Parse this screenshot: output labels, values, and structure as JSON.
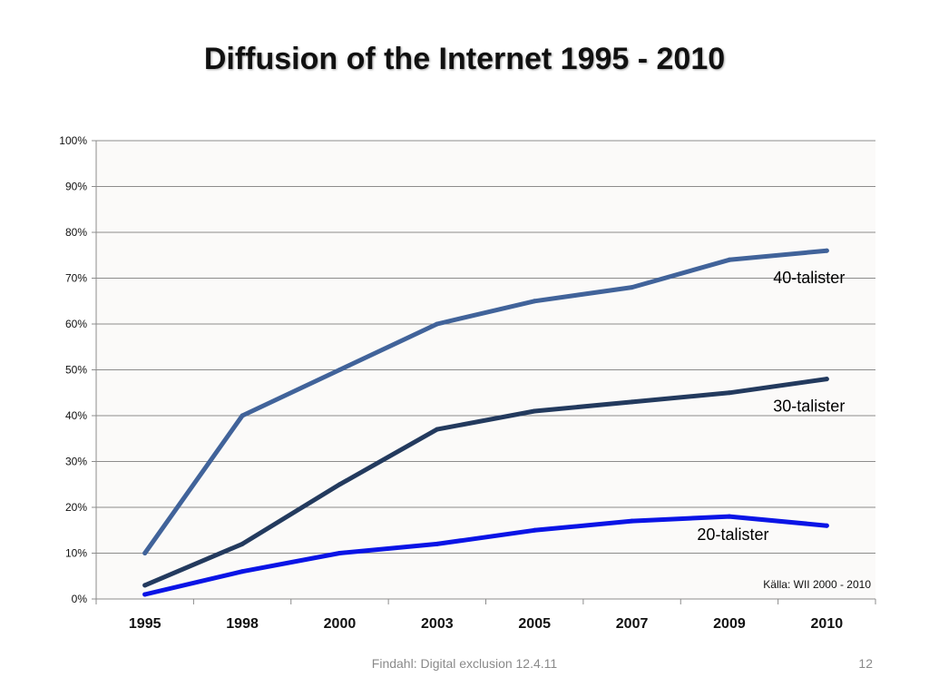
{
  "slide": {
    "title": "Diffusion of the Internet 1995 - 2010",
    "footer": "Findahl: Digital exclusion 12.4.11",
    "page_number": "12"
  },
  "chart_data": {
    "type": "line",
    "title": "Diffusion of the Internet 1995 - 2010",
    "categories": [
      "1995",
      "1998",
      "2000",
      "2003",
      "2005",
      "2007",
      "2009",
      "2010"
    ],
    "ylim": [
      0,
      100
    ],
    "y_ticks": [
      "0%",
      "10%",
      "20%",
      "30%",
      "40%",
      "50%",
      "60%",
      "70%",
      "80%",
      "90%",
      "100%"
    ],
    "grid": true,
    "series": [
      {
        "name": "40-talister",
        "color": "#41639a",
        "values": [
          10,
          40,
          50,
          60,
          65,
          68,
          74,
          76
        ]
      },
      {
        "name": "30-talister",
        "color": "#233a5e",
        "values": [
          3,
          12,
          25,
          37,
          41,
          43,
          45,
          48
        ]
      },
      {
        "name": "20-talister",
        "color": "#0a14e6",
        "values": [
          1,
          6,
          10,
          12,
          15,
          17,
          18,
          16
        ]
      }
    ],
    "annotation": "Källa: WII 2000 - 2010"
  }
}
